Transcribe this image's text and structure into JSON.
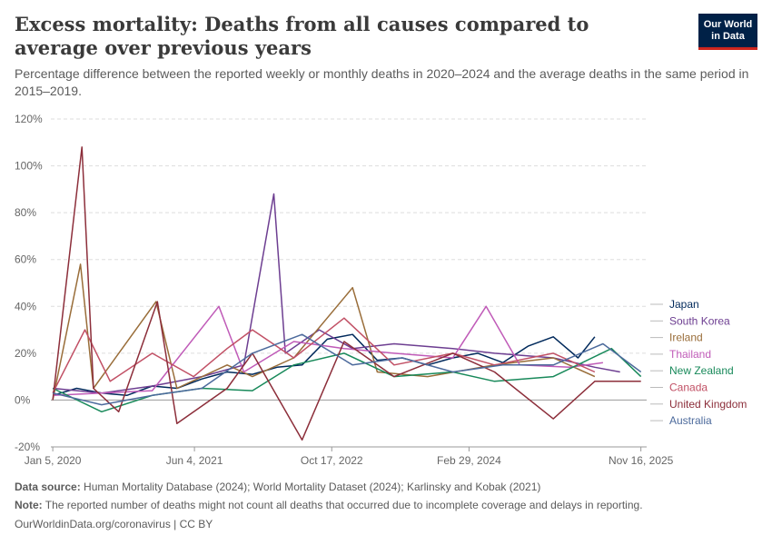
{
  "header": {
    "title": "Excess mortality: Deaths from all causes compared to average over previous years",
    "subtitle": "Percentage difference between the reported weekly or monthly deaths in 2020–2024 and the average deaths in the same period in 2015–2019."
  },
  "logo": {
    "line1": "Our World",
    "line2": "in Data"
  },
  "footer": {
    "source_label": "Data source:",
    "source_text": "Human Mortality Database (2024); World Mortality Dataset (2024); Karlinsky and Kobak (2021)",
    "note_label": "Note:",
    "note_text": "The reported number of deaths might not count all deaths that occurred due to incomplete coverage and delays in reporting.",
    "credit": "OurWorldinData.org/coronavirus | CC BY"
  },
  "chart_data": {
    "type": "line",
    "title": "Excess mortality: Deaths from all causes compared to average over previous years",
    "ylabel": "",
    "ylim": [
      -20,
      120
    ],
    "y_ticks": [
      -20,
      0,
      20,
      40,
      60,
      80,
      100,
      120
    ],
    "y_tick_labels": [
      "-20%",
      "0%",
      "20%",
      "40%",
      "60%",
      "80%",
      "100%",
      "120%"
    ],
    "x_range": [
      "2019-12-29",
      "2025-12-07"
    ],
    "x_ticks": [
      "2020-01-05",
      "2021-06-04",
      "2022-10-17",
      "2024-02-29",
      "2025-11-16"
    ],
    "x_tick_labels": [
      "Jan 5, 2020",
      "Jun 4, 2021",
      "Oct 17, 2022",
      "Feb 29, 2024",
      "Nov 16, 2025"
    ],
    "grid": "horizontal dashed",
    "legend_placement": "right (line end labels)",
    "series": [
      {
        "name": "Japan",
        "color": "#00295b",
        "points": [
          [
            "2020-01-05",
            2
          ],
          [
            "2020-04-01",
            5
          ],
          [
            "2020-07-01",
            3
          ],
          [
            "2020-10-01",
            2
          ],
          [
            "2021-01-01",
            6
          ],
          [
            "2021-04-01",
            5
          ],
          [
            "2021-07-01",
            9
          ],
          [
            "2021-10-01",
            12
          ],
          [
            "2022-01-01",
            11
          ],
          [
            "2022-04-01",
            14
          ],
          [
            "2022-07-01",
            15
          ],
          [
            "2022-10-01",
            26
          ],
          [
            "2023-01-01",
            28
          ],
          [
            "2023-04-01",
            17
          ],
          [
            "2023-07-01",
            18
          ],
          [
            "2023-10-01",
            15
          ],
          [
            "2024-01-01",
            18
          ],
          [
            "2024-04-01",
            20
          ],
          [
            "2024-07-01",
            16
          ],
          [
            "2024-10-01",
            23
          ],
          [
            "2025-01-01",
            27
          ],
          [
            "2025-04-01",
            18
          ],
          [
            "2025-06-01",
            27
          ]
        ]
      },
      {
        "name": "South Korea",
        "color": "#6d3e91",
        "points": [
          [
            "2020-01-05",
            5
          ],
          [
            "2020-07-01",
            3
          ],
          [
            "2021-01-01",
            6
          ],
          [
            "2021-07-01",
            10
          ],
          [
            "2021-12-01",
            15
          ],
          [
            "2022-03-20",
            88
          ],
          [
            "2022-05-01",
            20
          ],
          [
            "2022-09-01",
            30
          ],
          [
            "2023-01-01",
            22
          ],
          [
            "2023-06-01",
            24
          ],
          [
            "2024-01-01",
            22
          ],
          [
            "2024-06-01",
            20
          ],
          [
            "2025-01-01",
            18
          ],
          [
            "2025-06-01",
            14
          ],
          [
            "2025-09-01",
            12
          ]
        ]
      },
      {
        "name": "Ireland",
        "color": "#996d39",
        "points": [
          [
            "2020-01-05",
            0
          ],
          [
            "2020-04-15",
            58
          ],
          [
            "2020-06-01",
            5
          ],
          [
            "2021-01-15",
            42
          ],
          [
            "2021-04-01",
            5
          ],
          [
            "2021-10-01",
            15
          ],
          [
            "2022-01-01",
            10
          ],
          [
            "2022-06-01",
            18
          ],
          [
            "2023-01-01",
            48
          ],
          [
            "2023-04-01",
            12
          ],
          [
            "2023-10-01",
            10
          ],
          [
            "2024-06-01",
            15
          ],
          [
            "2025-01-01",
            18
          ],
          [
            "2025-06-01",
            10
          ]
        ]
      },
      {
        "name": "Thailand",
        "color": "#c05bb8",
        "points": [
          [
            "2020-01-05",
            2
          ],
          [
            "2020-07-01",
            3
          ],
          [
            "2021-01-01",
            4
          ],
          [
            "2021-09-01",
            40
          ],
          [
            "2021-12-01",
            12
          ],
          [
            "2022-06-01",
            25
          ],
          [
            "2022-12-01",
            22
          ],
          [
            "2023-06-01",
            20
          ],
          [
            "2024-01-01",
            18
          ],
          [
            "2024-05-01",
            40
          ],
          [
            "2024-09-01",
            15
          ],
          [
            "2025-03-01",
            14
          ],
          [
            "2025-07-01",
            16
          ]
        ]
      },
      {
        "name": "New Zealand",
        "color": "#18895a",
        "points": [
          [
            "2020-01-05",
            5
          ],
          [
            "2020-07-01",
            -5
          ],
          [
            "2021-01-01",
            2
          ],
          [
            "2021-07-01",
            5
          ],
          [
            "2022-01-01",
            4
          ],
          [
            "2022-06-01",
            15
          ],
          [
            "2022-12-01",
            20
          ],
          [
            "2023-06-01",
            10
          ],
          [
            "2024-01-01",
            12
          ],
          [
            "2024-06-01",
            8
          ],
          [
            "2025-01-01",
            10
          ],
          [
            "2025-08-01",
            22
          ],
          [
            "2025-11-16",
            10
          ]
        ]
      },
      {
        "name": "Canada",
        "color": "#c15065",
        "points": [
          [
            "2020-01-05",
            3
          ],
          [
            "2020-05-01",
            30
          ],
          [
            "2020-08-01",
            8
          ],
          [
            "2021-01-01",
            20
          ],
          [
            "2021-06-01",
            10
          ],
          [
            "2021-10-01",
            22
          ],
          [
            "2022-01-01",
            30
          ],
          [
            "2022-06-01",
            18
          ],
          [
            "2022-12-01",
            35
          ],
          [
            "2023-06-01",
            15
          ],
          [
            "2024-01-01",
            20
          ],
          [
            "2024-06-01",
            15
          ],
          [
            "2025-01-01",
            20
          ],
          [
            "2025-06-01",
            12
          ]
        ]
      },
      {
        "name": "United Kingdom",
        "color": "#8c2e3a",
        "points": [
          [
            "2020-01-05",
            0
          ],
          [
            "2020-04-20",
            108
          ],
          [
            "2020-06-01",
            5
          ],
          [
            "2020-09-01",
            -5
          ],
          [
            "2021-01-20",
            42
          ],
          [
            "2021-04-01",
            -10
          ],
          [
            "2021-10-01",
            5
          ],
          [
            "2022-01-01",
            20
          ],
          [
            "2022-07-01",
            -17
          ],
          [
            "2022-12-01",
            25
          ],
          [
            "2023-06-01",
            10
          ],
          [
            "2024-01-01",
            20
          ],
          [
            "2024-06-01",
            12
          ],
          [
            "2025-01-01",
            -8
          ],
          [
            "2025-06-01",
            8
          ],
          [
            "2025-11-16",
            8
          ]
        ]
      },
      {
        "name": "Australia",
        "color": "#4c6a9c",
        "points": [
          [
            "2020-01-05",
            3
          ],
          [
            "2020-07-01",
            -2
          ],
          [
            "2021-01-01",
            2
          ],
          [
            "2021-07-01",
            5
          ],
          [
            "2022-01-01",
            20
          ],
          [
            "2022-07-01",
            28
          ],
          [
            "2023-01-01",
            15
          ],
          [
            "2023-07-01",
            18
          ],
          [
            "2024-01-01",
            12
          ],
          [
            "2024-07-01",
            15
          ],
          [
            "2025-01-01",
            15
          ],
          [
            "2025-07-01",
            24
          ],
          [
            "2025-11-16",
            12
          ]
        ]
      }
    ]
  }
}
